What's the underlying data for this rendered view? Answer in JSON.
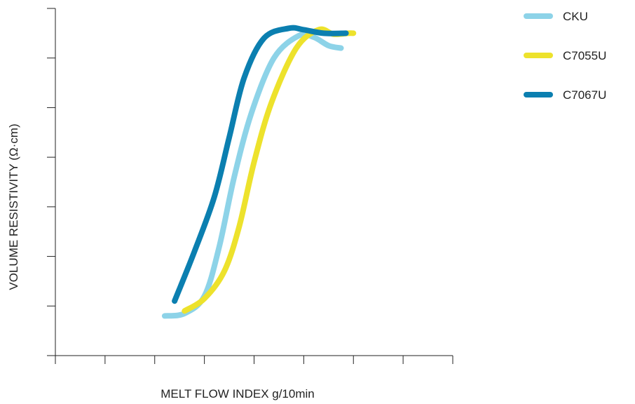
{
  "chart_data": {
    "type": "line",
    "xlabel": "MELT FLOW INDEX g/10min",
    "ylabel": "VOLUME RESISTIVITY (Ω·cm)",
    "x_ticks": 9,
    "y_ticks": 8,
    "xlim": [
      0,
      8
    ],
    "ylim": [
      0,
      7
    ],
    "grid": false,
    "legend_position": "top-right",
    "series": [
      {
        "name": "CKU",
        "color": "#8dd3e8",
        "points": [
          [
            2.2,
            0.8
          ],
          [
            2.6,
            0.85
          ],
          [
            3.0,
            1.2
          ],
          [
            3.3,
            2.2
          ],
          [
            3.6,
            3.6
          ],
          [
            3.95,
            4.9
          ],
          [
            4.4,
            6.0
          ],
          [
            4.9,
            6.45
          ],
          [
            5.2,
            6.42
          ],
          [
            5.5,
            6.25
          ],
          [
            5.75,
            6.2
          ]
        ]
      },
      {
        "name": "C7055U",
        "color": "#ede22c",
        "points": [
          [
            2.6,
            0.9
          ],
          [
            3.0,
            1.15
          ],
          [
            3.4,
            1.7
          ],
          [
            3.7,
            2.6
          ],
          [
            4.0,
            3.9
          ],
          [
            4.35,
            5.1
          ],
          [
            4.85,
            6.2
          ],
          [
            5.3,
            6.57
          ],
          [
            5.6,
            6.48
          ],
          [
            5.9,
            6.5
          ],
          [
            6.0,
            6.5
          ]
        ]
      },
      {
        "name": "C7067U",
        "color": "#0b7fb0",
        "points": [
          [
            2.4,
            1.1
          ],
          [
            2.8,
            2.1
          ],
          [
            3.2,
            3.2
          ],
          [
            3.5,
            4.4
          ],
          [
            3.8,
            5.6
          ],
          [
            4.2,
            6.4
          ],
          [
            4.7,
            6.6
          ],
          [
            5.0,
            6.57
          ],
          [
            5.4,
            6.5
          ],
          [
            5.85,
            6.5
          ]
        ]
      }
    ]
  }
}
